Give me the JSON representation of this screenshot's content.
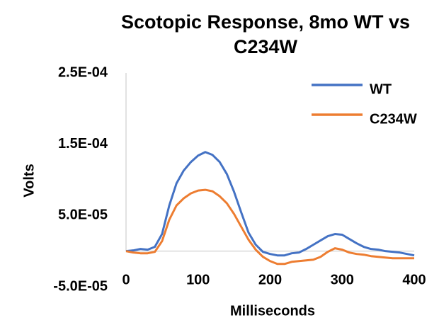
{
  "chart_data": {
    "type": "line",
    "title": "Scotopic Response, 8mo WT vs C234W",
    "x_label": "Milliseconds",
    "y_label": "Volts",
    "x": [
      0,
      10,
      20,
      30,
      40,
      50,
      60,
      70,
      80,
      90,
      100,
      110,
      120,
      130,
      140,
      150,
      160,
      170,
      180,
      190,
      200,
      210,
      220,
      230,
      240,
      250,
      260,
      270,
      280,
      290,
      300,
      310,
      320,
      330,
      340,
      350,
      360,
      370,
      380,
      390,
      400
    ],
    "series": [
      {
        "name": "WT",
        "color": "#4472c4",
        "values": [
          0,
          1e-06,
          3e-06,
          2e-06,
          6e-06,
          2.4e-05,
          6.4e-05,
          9.5e-05,
          0.000113,
          0.000125,
          0.000134,
          0.000139,
          0.000135,
          0.000125,
          0.000108,
          8.3e-05,
          5.4e-05,
          2.6e-05,
          9e-06,
          -1e-06,
          -4e-06,
          -6e-06,
          -6e-06,
          -3e-06,
          -2e-06,
          3e-06,
          9e-06,
          1.5e-05,
          2.1e-05,
          2.4e-05,
          2.3e-05,
          1.7e-05,
          1.1e-05,
          6e-06,
          3e-06,
          2e-06,
          0,
          -1e-06,
          -2e-06,
          -4e-06,
          -6e-06
        ]
      },
      {
        "name": "C234W",
        "color": "#ed7d31",
        "values": [
          0,
          -2e-06,
          -3e-06,
          -3e-06,
          -1e-06,
          1.4e-05,
          4.4e-05,
          6.4e-05,
          7.4e-05,
          8.1e-05,
          8.5e-05,
          8.6e-05,
          8.4e-05,
          7.7e-05,
          6.7e-05,
          5.2e-05,
          3.4e-05,
          1.6e-05,
          2e-06,
          -8e-06,
          -1.4e-05,
          -1.8e-05,
          -1.8e-05,
          -1.5e-05,
          -1.4e-05,
          -1.3e-05,
          -1.2e-05,
          -8e-06,
          -1e-06,
          4e-06,
          2e-06,
          -2e-06,
          -4e-06,
          -5e-06,
          -7e-06,
          -8e-06,
          -9e-06,
          -1e-05,
          -1e-05,
          -1e-05,
          -1e-05
        ]
      }
    ],
    "xlim": [
      0,
      400
    ],
    "xticks": [
      0,
      100,
      200,
      300,
      400
    ],
    "ylim": [
      -5e-05,
      0.00025
    ],
    "yticks": [
      {
        "value": -5e-05,
        "label": "-5.0E-05"
      },
      {
        "value": 5e-05,
        "label": "5.0E-05"
      },
      {
        "value": 0.00015,
        "label": "1.5E-04"
      },
      {
        "value": 0.00025,
        "label": "2.5E-04"
      }
    ],
    "grid": false,
    "legend": "top-right"
  }
}
